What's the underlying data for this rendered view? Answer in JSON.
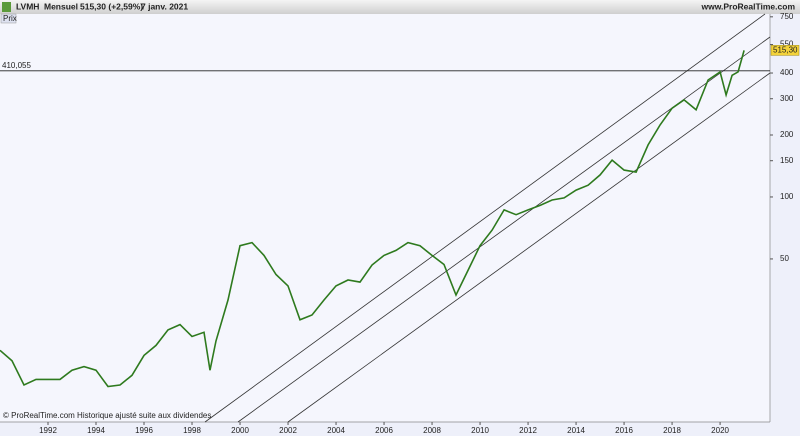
{
  "chart_data": {
    "type": "line",
    "title": "LVMH",
    "subtitle": "Mensuel",
    "last_change": "515,30 (+2,59%)",
    "date": "7 janv. 2021",
    "source": "www.ProRealTime.com",
    "panel_label": "Prix",
    "footnote": "© ProRealTime.com Historique ajusté suite aux dividendes",
    "log_scale": true,
    "color": "#2e7a1e",
    "x": [
      1990,
      1990.5,
      1991,
      1991.5,
      1992,
      1992.5,
      1993,
      1993.5,
      1994,
      1994.5,
      1995,
      1995.5,
      1996,
      1996.5,
      1997,
      1997.5,
      1998,
      1998.5,
      1998.75,
      1999,
      1999.5,
      2000,
      2000.5,
      2001,
      2001.5,
      2002,
      2002.5,
      2003,
      2003.5,
      2004,
      2004.5,
      2005,
      2005.5,
      2006,
      2006.5,
      2007,
      2007.5,
      2008,
      2008.5,
      2009,
      2009.5,
      2010,
      2010.5,
      2011,
      2011.5,
      2012,
      2012.5,
      2013,
      2013.5,
      2014,
      2014.5,
      2015,
      2015.5,
      2016,
      2016.5,
      2017,
      2017.5,
      2018,
      2018.5,
      2019,
      2019.5,
      2020,
      2020.25,
      2020.5,
      2020.75,
      2021
    ],
    "values": [
      18,
      16,
      12.2,
      13,
      13,
      13,
      14.4,
      15,
      14.4,
      12,
      12.2,
      13.6,
      17,
      19,
      22.6,
      24,
      21,
      22,
      14.4,
      20,
      31.6,
      58,
      60,
      52,
      42,
      37,
      25.3,
      26.7,
      31.6,
      37,
      39.5,
      38.6,
      46.7,
      52,
      55,
      60,
      58,
      52,
      47,
      33.4,
      44,
      58,
      69,
      86.5,
      82,
      86.5,
      91,
      96.7,
      99,
      108,
      114,
      128,
      151,
      135,
      132,
      179,
      224,
      270,
      296,
      265,
      370,
      405,
      313,
      390,
      405,
      515.3
    ],
    "last_price": {
      "value": 515.3,
      "label": "515,30"
    },
    "reference_line": {
      "value": 410.055,
      "label": "410,055"
    },
    "xlim": [
      1990,
      2022.08
    ],
    "xticks": [
      1992,
      1994,
      1996,
      1998,
      2000,
      2002,
      2004,
      2006,
      2008,
      2010,
      2012,
      2014,
      2016,
      2018,
      2020
    ],
    "ylim": [
      8.07,
      774
    ],
    "yticks": [
      750,
      550,
      400,
      300,
      200,
      150,
      100,
      50
    ]
  }
}
